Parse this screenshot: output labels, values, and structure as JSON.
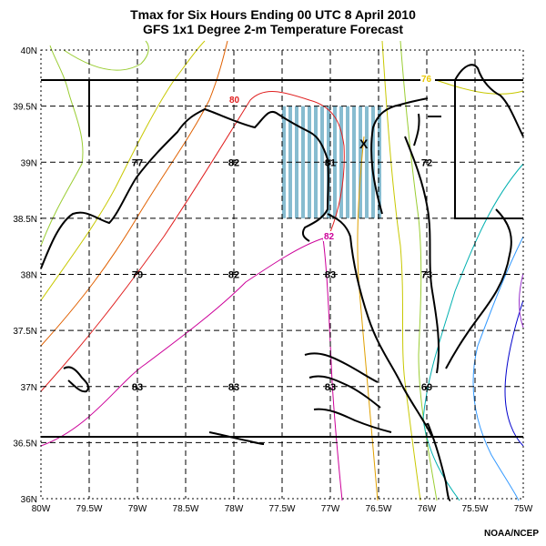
{
  "title": "Tmax for Six Hours Ending 00 UTC 8 April 2010",
  "subtitle": "GFS 1x1 Degree 2-m Temperature Forecast",
  "credit": "NOAA/NCEP",
  "map": {
    "lon_range": [
      -80,
      -75
    ],
    "lat_range": [
      36,
      40
    ],
    "x_ticks": [
      "80W",
      "79.5W",
      "79W",
      "78.5W",
      "78W",
      "77.5W",
      "77W",
      "76.5W",
      "76W",
      "75.5W",
      "75W"
    ],
    "y_ticks": [
      "40N",
      "39.5N",
      "39N",
      "38.5N",
      "38N",
      "37.5N",
      "37N",
      "36.5N",
      "36N"
    ],
    "grid_values": [
      {
        "lon": -79,
        "lat": 39,
        "label": "77"
      },
      {
        "lon": -78,
        "lat": 39,
        "label": "82"
      },
      {
        "lon": -77,
        "lat": 39,
        "label": "81"
      },
      {
        "lon": -76,
        "lat": 39,
        "label": "72"
      },
      {
        "lon": -79,
        "lat": 38,
        "label": "79"
      },
      {
        "lon": -78,
        "lat": 38,
        "label": "82"
      },
      {
        "lon": -77,
        "lat": 38,
        "label": "83"
      },
      {
        "lon": -76,
        "lat": 38,
        "label": "73"
      },
      {
        "lon": -79,
        "lat": 37,
        "label": "83"
      },
      {
        "lon": -78,
        "lat": 37,
        "label": "83"
      },
      {
        "lon": -77,
        "lat": 37,
        "label": "83"
      },
      {
        "lon": -76,
        "lat": 37,
        "label": "69"
      }
    ],
    "contour_labels": [
      {
        "text": "80",
        "color": "#e02020"
      },
      {
        "text": "82",
        "color": "#cc0099"
      },
      {
        "text": "76",
        "color": "#e8c800"
      }
    ],
    "marker": "X",
    "highlight_color": "#87bcd0",
    "contour_colors": [
      "#9acd32",
      "#c8c800",
      "#e0a000",
      "#e06000",
      "#e02020",
      "#cc0099",
      "#9933cc",
      "#00b0b0",
      "#3399ff",
      "#0000cc"
    ]
  }
}
